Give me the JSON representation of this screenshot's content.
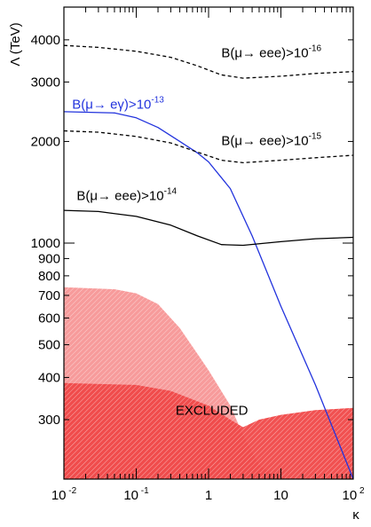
{
  "chart_data": {
    "type": "line",
    "title": "",
    "xlabel": "κ",
    "ylabel": "Λ (TeV)",
    "x_scale": "log",
    "y_scale": "log",
    "xlim": [
      0.01,
      100
    ],
    "ylim": [
      200,
      5000
    ],
    "x_ticks": [
      {
        "value": 0.01,
        "base": "10",
        "exp": "-2"
      },
      {
        "value": 0.1,
        "base": "10",
        "exp": "-1"
      },
      {
        "value": 1,
        "base": "1",
        "exp": ""
      },
      {
        "value": 10,
        "base": "10",
        "exp": ""
      },
      {
        "value": 100,
        "base": "10",
        "exp": "2"
      }
    ],
    "y_tick_labels": [
      {
        "value": 300,
        "label": "300"
      },
      {
        "value": 400,
        "label": "400"
      },
      {
        "value": 500,
        "label": "500"
      },
      {
        "value": 600,
        "label": "600"
      },
      {
        "value": 700,
        "label": "700"
      },
      {
        "value": 800,
        "label": "800"
      },
      {
        "value": 900,
        "label": "900"
      },
      {
        "value": 1000,
        "label": "1000"
      },
      {
        "value": 2000,
        "label": "2000"
      },
      {
        "value": 3000,
        "label": "3000"
      },
      {
        "value": 4000,
        "label": "4000"
      }
    ],
    "grid": false,
    "series": [
      {
        "name": "B(μ→ eee)>10-16",
        "label_text": "B(μ→ eee)>10",
        "label_exp": "-16",
        "style": "dashed",
        "color": "#000000",
        "label_at": {
          "x": 1.5,
          "y": 3550
        },
        "x": [
          0.01,
          0.03,
          0.1,
          0.3,
          0.7,
          1.5,
          3,
          10,
          30,
          100
        ],
        "y": [
          3850,
          3800,
          3700,
          3550,
          3350,
          3150,
          3080,
          3120,
          3180,
          3220
        ]
      },
      {
        "name": "B(μ→ eγ)>10-13",
        "label_text": "B(μ→ eγ)>10",
        "label_exp": "-13",
        "style": "solid",
        "color": "#2233dd",
        "label_at": {
          "x": 0.013,
          "y": 2500
        },
        "x": [
          0.01,
          0.05,
          0.1,
          0.2,
          0.4,
          0.7,
          1,
          2,
          4,
          10,
          30,
          100
        ],
        "y": [
          2450,
          2430,
          2350,
          2200,
          2000,
          1850,
          1740,
          1450,
          1050,
          650,
          380,
          200
        ]
      },
      {
        "name": "B(μ→ eee)>10-15",
        "label_text": "B(μ→ eee)>10",
        "label_exp": "-15",
        "style": "dashed",
        "color": "#000000",
        "label_at": {
          "x": 1.5,
          "y": 1950
        },
        "x": [
          0.01,
          0.03,
          0.1,
          0.3,
          0.7,
          1.5,
          3,
          10,
          30,
          100
        ],
        "y": [
          2150,
          2130,
          2070,
          1980,
          1860,
          1760,
          1730,
          1760,
          1790,
          1820
        ]
      },
      {
        "name": "B(μ→ eee)>10-14",
        "label_text": "B(μ→ eee)>10",
        "label_exp": "-14",
        "style": "solid",
        "color": "#000000",
        "label_at": {
          "x": 0.015,
          "y": 1340
        },
        "x": [
          0.01,
          0.03,
          0.1,
          0.3,
          0.7,
          1.5,
          3,
          10,
          30,
          100
        ],
        "y": [
          1250,
          1240,
          1200,
          1130,
          1050,
          990,
          985,
          1010,
          1030,
          1040
        ]
      }
    ],
    "regions": [
      {
        "name": "excluded-upper",
        "color": "#ee2222",
        "opacity": 0.55,
        "x": [
          0.01,
          0.05,
          0.1,
          0.2,
          0.4,
          0.7,
          1,
          2,
          3,
          5,
          10
        ],
        "y": [
          740,
          730,
          710,
          660,
          560,
          470,
          420,
          330,
          270,
          220,
          200
        ]
      },
      {
        "name": "excluded-lower",
        "color": "#ee2222",
        "opacity": 0.95,
        "x": [
          0.01,
          0.1,
          0.3,
          1,
          2,
          3,
          5,
          10,
          30,
          100
        ],
        "y": [
          385,
          380,
          365,
          330,
          300,
          285,
          300,
          310,
          320,
          325
        ]
      }
    ],
    "annotations": [
      {
        "text": "EXCLUDED",
        "x": 0.35,
        "y": 310
      }
    ]
  }
}
